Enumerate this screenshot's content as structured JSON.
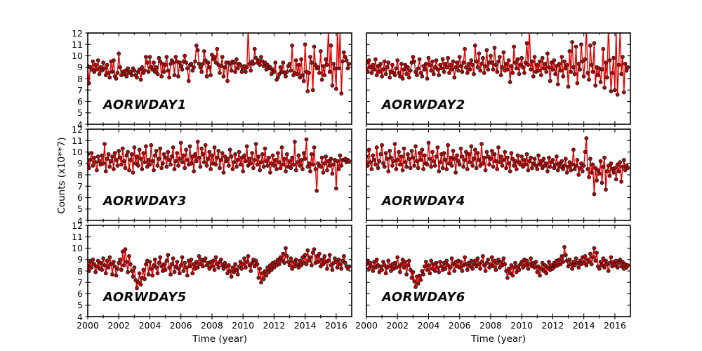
{
  "figure": {
    "background": "#ffffff",
    "axis_color": "#000000",
    "line_color": "#e60000",
    "marker_fill": "#cc0000",
    "marker_edge": "#1a1a1a",
    "ylabel": "Counts (x10**7)",
    "xlabel": "Time (year)",
    "x_tick_labels": [
      "2000",
      "2002",
      "2004",
      "2006",
      "2008",
      "2010",
      "2012",
      "2014",
      "2016"
    ],
    "y_tick_labels": [
      "4",
      "5",
      "6",
      "7",
      "8",
      "9",
      "10",
      "11",
      "12"
    ],
    "x_major_ticks": [
      2000,
      2002,
      2004,
      2006,
      2008,
      2010,
      2012,
      2014,
      2016
    ],
    "x_minor_ticks": [
      2001,
      2003,
      2005,
      2007,
      2009,
      2011,
      2013,
      2015
    ],
    "y_ticks": [
      4,
      5,
      6,
      7,
      8,
      9,
      10,
      11,
      12
    ]
  },
  "chart_data": [
    {
      "type": "line",
      "label": "AORWDAY1",
      "row": 0,
      "col": 0,
      "show_y_tick_labels": true,
      "show_x_tick_labels": false,
      "xlabel": "",
      "xlim": [
        2000,
        2017
      ],
      "ylim": [
        4,
        12
      ],
      "x_start": 2000,
      "x_step_years": 0.0833333,
      "values": [
        9.1,
        7.6,
        9.0,
        8.8,
        9.5,
        8.6,
        9.2,
        8.8,
        9.6,
        8.4,
        9.0,
        8.7,
        9.4,
        8.9,
        8.3,
        9.2,
        8.5,
        8.1,
        9.5,
        8.6,
        9.6,
        8.2,
        8.0,
        8.5,
        10.2,
        9.0,
        8.3,
        8.6,
        8.4,
        8.7,
        8.2,
        8.9,
        8.5,
        8.6,
        8.3,
        8.9,
        8.7,
        8.3,
        8.1,
        8.6,
        8.8,
        7.9,
        9.0,
        8.5,
        8.7,
        9.9,
        9.4,
        8.6,
        9.9,
        9.0,
        8.8,
        9.4,
        8.6,
        9.0,
        8.4,
        9.8,
        9.5,
        8.2,
        9.3,
        8.6,
        9.2,
        9.9,
        8.7,
        8.1,
        9.3,
        9.6,
        9.4,
        8.3,
        9.9,
        9.5,
        8.2,
        9.4,
        9.1,
        8.8,
        9.5,
        10.0,
        9.4,
        8.9,
        7.8,
        9.2,
        9.3,
        8.7,
        9.0,
        9.5,
        10.9,
        10.5,
        9.3,
        9.0,
        8.6,
        9.3,
        10.4,
        9.6,
        8.2,
        9.4,
        9.0,
        8.3,
        10.1,
        9.7,
        9.9,
        9.4,
        10.6,
        9.2,
        8.5,
        9.1,
        9.9,
        8.2,
        9.0,
        9.4,
        7.8,
        9.4,
        9.3,
        8.7,
        9.5,
        9.4,
        8.6,
        9.7,
        8.9,
        9.3,
        9.2,
        8.6,
        8.9,
        9.1,
        8.6,
        9.0,
        12.4,
        9.3,
        8.7,
        9.5,
        9.3,
        10.6,
        9.8,
        9.4,
        9.6,
        9.2,
        9.9,
        9.5,
        9.1,
        9.4,
        8.8,
        9.2,
        8.9,
        9.0,
        8.4,
        8.8,
        8.6,
        9.4,
        7.9,
        8.1,
        8.4,
        9.0,
        8.6,
        9.4,
        8.5,
        8.2,
        8.6,
        9.1,
        9.3,
        8.7,
        10.9,
        8.3,
        8.5,
        9.6,
        8.4,
        9.2,
        8.1,
        9.7,
        8.3,
        7.8,
        11.0,
        8.6,
        6.9,
        8.5,
        9.9,
        9.4,
        7.0,
        10.8,
        9.2,
        8.9,
        9.0,
        8.5,
        10.4,
        7.9,
        9.1,
        8.3,
        9.7,
        9.2,
        12.4,
        8.6,
        10.9,
        7.4,
        9.3,
        8.9,
        7.1,
        12.3,
        8.9,
        12.2,
        6.7,
        9.5,
        10.3,
        9.9,
        9.6,
        8.9,
        9.3
      ]
    },
    {
      "type": "line",
      "label": "AORWDAY2",
      "row": 0,
      "col": 1,
      "show_y_tick_labels": false,
      "show_x_tick_labels": false,
      "xlabel": "",
      "xlim": [
        2000,
        2017
      ],
      "ylim": [
        4,
        12
      ],
      "x_start": 2000,
      "x_step_years": 0.0833333,
      "values": [
        9.4,
        8.6,
        9.6,
        9.0,
        8.5,
        9.2,
        8.8,
        9.7,
        8.3,
        9.1,
        8.6,
        9.3,
        8.2,
        8.8,
        9.5,
        8.4,
        9.0,
        9.4,
        8.1,
        8.6,
        9.2,
        8.5,
        8.3,
        8.9,
        9.6,
        8.5,
        8.2,
        9.3,
        8.0,
        8.8,
        9.2,
        8.4,
        9.0,
        8.1,
        8.7,
        9.4,
        9.9,
        9.5,
        8.6,
        8.3,
        8.9,
        9.7,
        8.5,
        8.2,
        9.1,
        8.8,
        9.3,
        8.0,
        9.8,
        9.2,
        8.7,
        9.5,
        8.4,
        9.0,
        9.6,
        8.8,
        8.3,
        9.2,
        8.9,
        9.7,
        8.6,
        9.3,
        9.0,
        9.8,
        8.5,
        9.2,
        8.8,
        9.5,
        8.1,
        9.0,
        9.4,
        8.7,
        9.9,
        9.1,
        8.6,
        9.4,
        10.6,
        9.0,
        8.5,
        9.3,
        8.8,
        9.6,
        9.2,
        8.4,
        10.9,
        9.5,
        9.0,
        10.2,
        8.7,
        9.3,
        9.8,
        8.5,
        9.1,
        10.5,
        8.8,
        9.4,
        10.0,
        9.4,
        8.8,
        10.7,
        9.2,
        8.6,
        9.5,
        9.9,
        8.3,
        9.0,
        10.3,
        8.7,
        9.3,
        8.8,
        9.6,
        7.7,
        9.1,
        8.5,
        10.8,
        9.4,
        8.9,
        9.7,
        8.4,
        9.2,
        9.8,
        9.0,
        8.5,
        9.4,
        11.1,
        9.2,
        12.3,
        8.8,
        9.5,
        8.2,
        9.9,
        8.6,
        9.2,
        8.7,
        9.5,
        8.3,
        9.8,
        8.9,
        9.3,
        8.6,
        10.2,
        9.0,
        7.8,
        9.4,
        8.8,
        9.6,
        8.4,
        9.1,
        7.5,
        9.3,
        8.7,
        9.9,
        8.2,
        9.5,
        8.9,
        9.2,
        7.3,
        10.4,
        8.6,
        11.2,
        9.0,
        8.4,
        10.8,
        7.6,
        9.3,
        8.8,
        11.0,
        9.5,
        8.2,
        9.7,
        12.4,
        8.5,
        7.9,
        10.9,
        9.2,
        8.6,
        11.1,
        7.4,
        9.0,
        8.3,
        8.9,
        7.7,
        8.8,
        10.6,
        7.2,
        9.4,
        8.1,
        12.5,
        9.6,
        6.9,
        8.5,
        9.8,
        7.0,
        12.3,
        6.6,
        9.2,
        12.1,
        8.4,
        9.9,
        6.8,
        9.3,
        8.7,
        9.0
      ]
    },
    {
      "type": "line",
      "label": "AORWDAY3",
      "row": 1,
      "col": 0,
      "show_y_tick_labels": true,
      "show_x_tick_labels": false,
      "xlabel": "",
      "xlim": [
        2000,
        2017
      ],
      "ylim": [
        4,
        12
      ],
      "x_start": 2000,
      "x_step_years": 0.0833333,
      "values": [
        9.8,
        8.6,
        9.3,
        9.9,
        8.8,
        9.5,
        9.1,
        8.4,
        9.6,
        9.2,
        8.9,
        9.7,
        9.0,
        10.7,
        8.3,
        9.4,
        9.8,
        8.7,
        9.2,
        9.6,
        8.5,
        9.9,
        9.3,
        8.8,
        10.1,
        9.5,
        8.9,
        10.3,
        9.2,
        8.6,
        9.7,
        10.0,
        8.4,
        9.3,
        9.8,
        8.2,
        10.4,
        9.0,
        9.6,
        8.8,
        10.2,
        9.4,
        8.5,
        9.9,
        9.1,
        10.5,
        8.7,
        9.3,
        8.9,
        10.6,
        9.2,
        8.4,
        9.7,
        10.1,
        8.8,
        9.4,
        10.3,
        8.6,
        9.0,
        9.8,
        9.5,
        8.7,
        10.0,
        9.3,
        8.9,
        9.6,
        10.4,
        8.5,
        9.2,
        9.9,
        8.8,
        9.4,
        10.8,
        9.1,
        9.7,
        8.6,
        10.2,
        9.3,
        8.9,
        10.5,
        9.0,
        9.6,
        8.3,
        9.8,
        9.2,
        10.9,
        9.5,
        8.7,
        10.3,
        9.8,
        9.1,
        10.6,
        8.8,
        9.4,
        10.0,
        8.5,
        9.7,
        9.0,
        10.4,
        8.9,
        9.5,
        10.1,
        8.6,
        9.3,
        9.9,
        8.2,
        9.6,
        9.2,
        9.4,
        8.8,
        10.2,
        9.6,
        8.5,
        9.1,
        9.8,
        8.7,
        9.3,
        10.0,
        8.9,
        9.5,
        8.3,
        9.7,
        9.2,
        10.5,
        8.8,
        9.4,
        9.0,
        9.9,
        8.6,
        9.3,
        10.7,
        8.9,
        9.6,
        8.4,
        9.1,
        9.8,
        8.7,
        10.3,
        9.2,
        8.8,
        9.5,
        8.2,
        9.0,
        9.7,
        8.8,
        9.3,
        8.5,
        9.9,
        9.1,
        8.6,
        10.4,
        8.9,
        9.4,
        8.3,
        9.8,
        8.7,
        9.2,
        8.6,
        9.5,
        8.9,
        10.9,
        8.4,
        9.1,
        9.7,
        8.8,
        9.3,
        8.5,
        9.9,
        9.4,
        11.1,
        8.7,
        9.0,
        8.3,
        9.8,
        8.9,
        10.4,
        8.5,
        6.6,
        9.0,
        8.8,
        8.7,
        9.5,
        8.2,
        9.0,
        9.6,
        8.4,
        9.2,
        8.8,
        9.4,
        8.1,
        8.9,
        9.3,
        6.8,
        9.2,
        8.5,
        9.7,
        8.8,
        9.3,
        9.3,
        9.4,
        9.1,
        9.3,
        9.2
      ]
    },
    {
      "type": "line",
      "label": "AORWDAY4",
      "row": 1,
      "col": 1,
      "show_y_tick_labels": false,
      "show_x_tick_labels": false,
      "xlabel": "",
      "xlim": [
        2000,
        2017
      ],
      "ylim": [
        4,
        12
      ],
      "x_start": 2000,
      "x_step_years": 0.0833333,
      "values": [
        9.6,
        8.8,
        10.2,
        9.1,
        8.5,
        9.7,
        9.3,
        8.9,
        10.4,
        8.6,
        9.2,
        9.8,
        10.6,
        9.0,
        8.7,
        9.9,
        9.4,
        8.3,
        10.1,
        9.5,
        8.8,
        9.2,
        10.7,
        8.5,
        9.3,
        10.0,
        8.9,
        9.6,
        8.4,
        10.3,
        9.1,
        8.7,
        9.8,
        9.4,
        8.6,
        10.1,
        9.5,
        8.8,
        10.5,
        9.2,
        8.6,
        9.9,
        9.3,
        10.2,
        8.5,
        9.7,
        9.0,
        8.9,
        10.8,
        9.4,
        8.7,
        10.0,
        9.2,
        8.8,
        9.6,
        10.4,
        8.3,
        9.1,
        9.8,
        8.6,
        9.9,
        9.3,
        8.5,
        10.6,
        9.0,
        9.5,
        8.8,
        10.1,
        9.4,
        8.2,
        9.7,
        9.2,
        8.9,
        10.3,
        9.6,
        8.7,
        9.3,
        10.0,
        8.5,
        9.8,
        9.1,
        10.5,
        8.8,
        9.4,
        10.2,
        8.6,
        9.9,
        9.3,
        8.8,
        10.7,
        9.0,
        9.5,
        8.4,
        10.0,
        9.6,
        8.9,
        9.4,
        10.1,
        8.7,
        9.8,
        9.2,
        8.5,
        10.4,
        9.1,
        9.6,
        8.8,
        9.3,
        10.0,
        8.6,
        9.5,
        9.0,
        8.3,
        9.9,
        9.4,
        8.8,
        9.2,
        8.5,
        9.7,
        9.1,
        8.9,
        9.6,
        8.7,
        9.3,
        8.9,
        9.8,
        8.4,
        9.2,
        9.5,
        8.6,
        9.0,
        9.4,
        8.8,
        8.5,
        9.7,
        8.9,
        9.2,
        8.6,
        9.4,
        8.8,
        9.0,
        8.3,
        9.5,
        8.7,
        9.1,
        9.3,
        8.6,
        8.9,
        9.6,
        8.4,
        9.0,
        8.7,
        9.2,
        8.5,
        8.8,
        9.4,
        8.2,
        8.7,
        9.1,
        8.4,
        8.9,
        10.2,
        8.5,
        8.8,
        9.3,
        8.0,
        8.6,
        9.0,
        8.3,
        8.8,
        10.0,
        11.2,
        8.5,
        7.8,
        9.4,
        8.2,
        8.9,
        6.3,
        8.6,
        7.5,
        8.4,
        8.1,
        9.2,
        7.3,
        8.7,
        9.5,
        6.7,
        8.3,
        8.8,
        7.9,
        9.0,
        8.5,
        8.2,
        8.6,
        7.6,
        8.9,
        8.3,
        9.1,
        7.4,
        8.7,
        9.3,
        8.4,
        8.8,
        8.6
      ]
    },
    {
      "type": "line",
      "label": "AORWDAY5",
      "row": 2,
      "col": 0,
      "show_y_tick_labels": true,
      "show_x_tick_labels": true,
      "xlabel": "Time (year)",
      "xlim": [
        2000,
        2017
      ],
      "ylim": [
        4,
        12
      ],
      "x_start": 2000,
      "x_step_years": 0.0833333,
      "values": [
        8.5,
        8.0,
        8.8,
        8.3,
        9.0,
        8.6,
        7.9,
        8.4,
        8.9,
        8.2,
        8.7,
        8.1,
        9.1,
        8.5,
        7.8,
        8.9,
        8.3,
        9.2,
        8.6,
        7.7,
        8.8,
        8.4,
        7.6,
        8.2,
        8.7,
        9.0,
        8.1,
        9.7,
        8.5,
        9.9,
        8.8,
        7.9,
        9.3,
        8.6,
        8.0,
        7.5,
        8.3,
        7.2,
        6.5,
        7.0,
        7.8,
        6.8,
        7.4,
        8.1,
        7.3,
        8.6,
        8.9,
        7.7,
        8.8,
        8.2,
        7.6,
        8.5,
        9.0,
        8.3,
        7.8,
        8.7,
        9.2,
        8.4,
        8.0,
        8.6,
        8.1,
        8.9,
        9.4,
        8.3,
        7.7,
        8.6,
        9.1,
        7.9,
        8.4,
        8.8,
        8.2,
        7.8,
        8.5,
        9.2,
        8.0,
        8.7,
        8.3,
        7.6,
        8.9,
        8.4,
        9.0,
        7.8,
        8.6,
        8.2,
        8.8,
        8.3,
        9.3,
        8.6,
        9.0,
        8.4,
        8.9,
        9.1,
        8.5,
        8.7,
        8.2,
        8.8,
        8.4,
        8.9,
        8.1,
        9.2,
        8.6,
        8.3,
        8.8,
        9.0,
        8.5,
        8.2,
        8.7,
        8.4,
        7.8,
        8.5,
        8.0,
        7.5,
        8.3,
        7.9,
        8.6,
        8.1,
        7.7,
        8.4,
        8.8,
        8.2,
        8.6,
        9.1,
        8.3,
        8.8,
        9.3,
        8.5,
        8.0,
        8.7,
        9.0,
        8.4,
        8.9,
        8.6,
        7.4,
        8.2,
        7.0,
        7.8,
        7.3,
        8.0,
        7.6,
        8.3,
        7.9,
        8.5,
        8.1,
        8.7,
        8.3,
        8.8,
        8.5,
        9.0,
        8.6,
        9.2,
        8.9,
        9.5,
        8.7,
        10.0,
        9.3,
        8.8,
        8.5,
        9.1,
        8.2,
        8.8,
        8.4,
        9.0,
        8.6,
        8.3,
        8.9,
        8.5,
        9.2,
        8.7,
        9.4,
        8.6,
        9.8,
        8.9,
        9.2,
        8.5,
        9.6,
        9.9,
        8.7,
        9.3,
        8.8,
        9.5,
        8.4,
        9.0,
        8.6,
        9.3,
        8.8,
        8.2,
        8.9,
        9.4,
        8.5,
        8.1,
        8.7,
        9.1,
        8.8,
        8.3,
        9.0,
        8.6,
        8.2,
        8.9,
        9.3,
        8.7,
        8.4,
        8.2,
        8.4
      ]
    },
    {
      "type": "line",
      "label": "AORWDAY6",
      "row": 2,
      "col": 1,
      "show_y_tick_labels": false,
      "show_x_tick_labels": true,
      "xlabel": "Time (year)",
      "xlim": [
        2000,
        2017
      ],
      "ylim": [
        4,
        12
      ],
      "x_start": 2000,
      "x_step_years": 0.0833333,
      "values": [
        8.6,
        8.9,
        8.2,
        8.7,
        8.4,
        8.0,
        8.8,
        8.3,
        9.0,
        8.5,
        7.9,
        8.4,
        8.1,
        8.8,
        8.5,
        7.8,
        8.3,
        8.9,
        8.4,
        8.0,
        8.6,
        8.2,
        8.7,
        8.3,
        9.2,
        8.4,
        7.9,
        8.6,
        9.0,
        8.3,
        8.8,
        7.7,
        8.5,
        8.9,
        8.1,
        7.4,
        7.9,
        7.1,
        6.6,
        7.5,
        6.9,
        7.6,
        7.2,
        8.0,
        7.7,
        8.4,
        8.8,
        8.1,
        8.5,
        7.8,
        8.9,
        8.2,
        8.6,
        8.0,
        8.7,
        8.3,
        7.9,
        8.8,
        8.4,
        8.1,
        8.7,
        8.2,
        8.9,
        8.5,
        7.8,
        8.3,
        9.1,
        8.6,
        8.0,
        8.8,
        8.4,
        8.9,
        8.3,
        8.8,
        8.0,
        8.5,
        9.2,
        8.6,
        8.1,
        8.7,
        8.4,
        8.9,
        8.2,
        8.6,
        8.9,
        8.4,
        9.1,
        8.6,
        8.2,
        8.8,
        9.3,
        8.5,
        8.0,
        8.7,
        9.0,
        8.3,
        8.6,
        9.2,
        8.4,
        8.9,
        8.1,
        8.7,
        9.0,
        8.3,
        8.8,
        8.5,
        9.1,
        8.6,
        8.0,
        7.4,
        8.2,
        7.8,
        8.5,
        7.6,
        8.3,
        8.7,
        7.9,
        8.4,
        8.1,
        8.6,
        8.8,
        8.3,
        9.0,
        8.5,
        8.9,
        8.2,
        8.6,
        9.1,
        8.4,
        8.7,
        8.3,
        8.8,
        7.9,
        8.4,
        7.6,
        8.2,
        8.7,
        8.0,
        8.5,
        7.8,
        8.3,
        8.8,
        8.1,
        8.5,
        8.2,
        8.7,
        8.4,
        8.9,
        8.5,
        9.0,
        8.6,
        9.3,
        8.8,
        10.1,
        9.4,
        8.9,
        8.4,
        9.0,
        8.6,
        8.2,
        8.8,
        8.5,
        9.1,
        8.7,
        8.3,
        8.9,
        8.6,
        9.2,
        8.7,
        9.3,
        8.5,
        9.0,
        8.8,
        9.5,
        8.6,
        9.2,
        10.0,
        8.9,
        9.6,
        8.4,
        8.2,
        8.8,
        8.5,
        9.1,
        8.3,
        8.9,
        8.6,
        8.0,
        8.7,
        9.2,
        8.4,
        8.8,
        8.5,
        8.9,
        8.3,
        8.7,
        9.0,
        8.4,
        8.8,
        8.2,
        8.6,
        8.3,
        8.5
      ]
    }
  ]
}
